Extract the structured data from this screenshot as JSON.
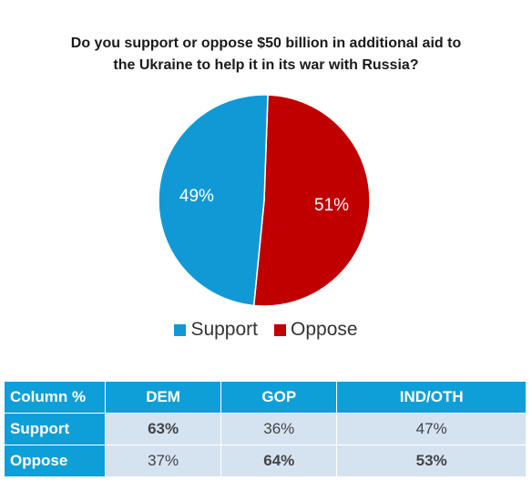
{
  "chart_data": {
    "type": "pie",
    "title": "Do you support or oppose $50 billion in additional aid to the Ukraine to help it in its war with Russia?",
    "title_lines": [
      "Do you support or oppose $50 billion in additional aid to",
      "the Ukraine to help it in its war with Russia?"
    ],
    "slices": [
      {
        "label": "Support",
        "value": 49,
        "display": "49%",
        "color": "#1199d6"
      },
      {
        "label": "Oppose",
        "value": 51,
        "display": "51%",
        "color": "#c00000"
      }
    ],
    "legend": {
      "placement": "bottom",
      "items": [
        "Support",
        "Oppose"
      ]
    }
  },
  "table": {
    "headers": [
      "Column %",
      "DEM",
      "GOP",
      "IND/OTH"
    ],
    "rows": [
      {
        "label": "Support",
        "values": [
          "63%",
          "36%",
          "47%"
        ],
        "bold": [
          true,
          false,
          false
        ]
      },
      {
        "label": "Oppose",
        "values": [
          "37%",
          "64%",
          "53%"
        ],
        "bold": [
          false,
          true,
          true
        ]
      }
    ]
  }
}
